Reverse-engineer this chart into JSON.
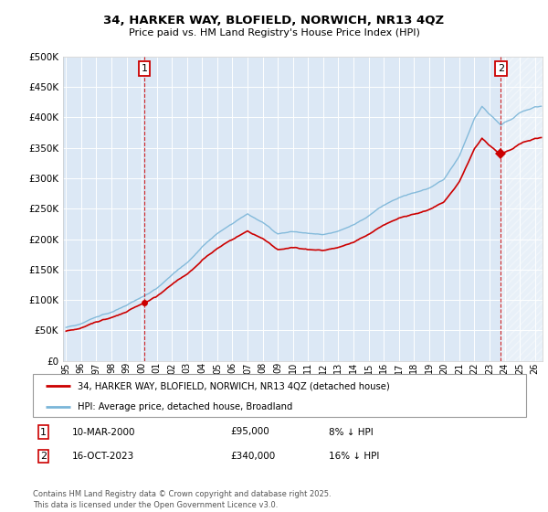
{
  "title_line1": "34, HARKER WAY, BLOFIELD, NORWICH, NR13 4QZ",
  "title_line2": "Price paid vs. HM Land Registry's House Price Index (HPI)",
  "background_color": "#ffffff",
  "plot_bg_color": "#dce8f5",
  "grid_color": "#ffffff",
  "sale1_price": 95000,
  "sale2_price": 340000,
  "legend_line1": "34, HARKER WAY, BLOFIELD, NORWICH, NR13 4QZ (detached house)",
  "legend_line2": "HPI: Average price, detached house, Broadland",
  "footer": "Contains HM Land Registry data © Crown copyright and database right 2025.\nThis data is licensed under the Open Government Licence v3.0.",
  "price_line_color": "#cc0000",
  "hpi_line_color": "#7ab5d8",
  "sale_marker_color": "#cc0000",
  "vline_color": "#cc0000",
  "ylim": [
    0,
    500000
  ],
  "yticks": [
    0,
    50000,
    100000,
    150000,
    200000,
    250000,
    300000,
    350000,
    400000,
    450000,
    500000
  ],
  "hpi_key_x": [
    1995,
    1996,
    1997,
    1998,
    1999,
    2000,
    2001,
    2002,
    2003,
    2004,
    2005,
    2006,
    2007,
    2008,
    2009,
    2010,
    2011,
    2012,
    2013,
    2014,
    2015,
    2016,
    2017,
    2018,
    2019,
    2020,
    2021,
    2022,
    2022.5,
    2023,
    2023.75,
    2024,
    2024.5,
    2025,
    2025.5,
    2026
  ],
  "hpi_key_y": [
    55000,
    62000,
    73000,
    82000,
    93000,
    105000,
    120000,
    142000,
    162000,
    188000,
    208000,
    225000,
    242000,
    228000,
    210000,
    215000,
    212000,
    210000,
    215000,
    225000,
    240000,
    258000,
    270000,
    278000,
    285000,
    300000,
    338000,
    400000,
    420000,
    408000,
    390000,
    395000,
    400000,
    410000,
    415000,
    420000
  ]
}
